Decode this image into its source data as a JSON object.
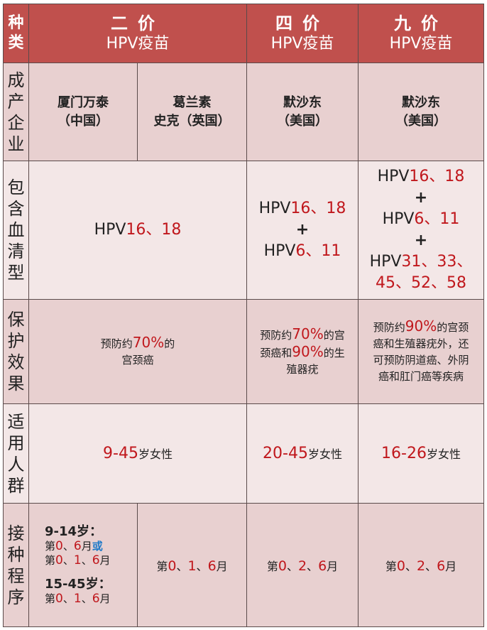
{
  "header": {
    "row_label": "种类",
    "bivalent": {
      "title": "二价",
      "subtitle": "HPV疫苗"
    },
    "quadrivalent": {
      "title": "四价",
      "subtitle": "HPV疫苗"
    },
    "nonavalent": {
      "title": "九价",
      "subtitle": "HPV疫苗"
    }
  },
  "rows": {
    "company": {
      "label": "成产企业",
      "cells": [
        [
          "厦门万泰",
          "（中国）"
        ],
        [
          "葛兰素",
          "史克（英国）"
        ],
        [
          "默沙东",
          "（美国）"
        ],
        [
          "默沙东",
          "（美国）"
        ]
      ]
    },
    "serotype": {
      "label": "包含血清型",
      "cells": [
        [
          [
            {
              "t": "HPV",
              "s": ""
            },
            {
              "t": "16、18",
              "s": "red"
            }
          ]
        ],
        [
          [
            {
              "t": "HPV",
              "s": ""
            },
            {
              "t": "16、18",
              "s": "red"
            }
          ],
          [
            {
              "t": "+",
              "s": "bold"
            }
          ],
          [
            {
              "t": "HPV",
              "s": ""
            },
            {
              "t": "6、11",
              "s": "red"
            }
          ]
        ],
        [
          [
            {
              "t": "HPV",
              "s": ""
            },
            {
              "t": "16、18",
              "s": "red"
            }
          ],
          [
            {
              "t": "+",
              "s": "bold"
            }
          ],
          [
            {
              "t": "HPV",
              "s": ""
            },
            {
              "t": "6、11",
              "s": "red"
            }
          ],
          [
            {
              "t": "+",
              "s": "bold"
            }
          ],
          [
            {
              "t": "HPV",
              "s": ""
            },
            {
              "t": "31、33、",
              "s": "red"
            }
          ],
          [
            {
              "t": "45、52、58",
              "s": "red"
            }
          ]
        ]
      ]
    },
    "effect": {
      "label": "保护效果",
      "cells": [
        [
          [
            {
              "t": "预防约",
              "s": ""
            },
            {
              "t": "70%",
              "s": "red"
            },
            {
              "t": "的",
              "s": ""
            }
          ],
          [
            {
              "t": "宫颈癌",
              "s": ""
            }
          ]
        ],
        [
          [
            {
              "t": "预防约",
              "s": ""
            },
            {
              "t": "70%",
              "s": "red"
            },
            {
              "t": "的宫",
              "s": ""
            }
          ],
          [
            {
              "t": "颈癌和",
              "s": ""
            },
            {
              "t": "90%",
              "s": "red"
            },
            {
              "t": "的生",
              "s": ""
            }
          ],
          [
            {
              "t": "殖器疣",
              "s": ""
            }
          ]
        ],
        [
          [
            {
              "t": "预防约",
              "s": ""
            },
            {
              "t": "90%",
              "s": "red"
            },
            {
              "t": "的宫颈",
              "s": ""
            }
          ],
          [
            {
              "t": "癌和生殖器疣外，还",
              "s": ""
            }
          ],
          [
            {
              "t": "可预防阴道癌、外阴",
              "s": ""
            }
          ],
          [
            {
              "t": "癌和肛门癌等疾病",
              "s": ""
            }
          ]
        ]
      ]
    },
    "age": {
      "label": "适用人群",
      "cells": [
        [
          [
            {
              "t": "9-45",
              "s": "red"
            },
            {
              "t": "岁女性",
              "s": ""
            }
          ]
        ],
        [
          [
            {
              "t": "20-45",
              "s": "red"
            },
            {
              "t": "岁女性",
              "s": ""
            }
          ]
        ],
        [
          [
            {
              "t": "16-26",
              "s": "red"
            },
            {
              "t": "岁女性",
              "s": ""
            }
          ]
        ]
      ]
    },
    "schedule": {
      "label": "接种程序",
      "cells": [
        [
          [
            {
              "t": "9-14岁：",
              "s": "bold"
            }
          ],
          [
            {
              "t": "第",
              "s": ""
            },
            {
              "t": "0",
              "s": "red"
            },
            {
              "t": "、",
              "s": ""
            },
            {
              "t": "6",
              "s": "red"
            },
            {
              "t": "月",
              "s": ""
            },
            {
              "t": "或",
              "s": "blue"
            }
          ],
          [
            {
              "t": "第",
              "s": ""
            },
            {
              "t": "0",
              "s": "red"
            },
            {
              "t": "、",
              "s": ""
            },
            {
              "t": "1",
              "s": "red"
            },
            {
              "t": "、",
              "s": ""
            },
            {
              "t": "6",
              "s": "red"
            },
            {
              "t": "月",
              "s": ""
            }
          ],
          [],
          [
            {
              "t": "15-45岁：",
              "s": "bold"
            }
          ],
          [
            {
              "t": "第",
              "s": ""
            },
            {
              "t": "0",
              "s": "red"
            },
            {
              "t": "、",
              "s": ""
            },
            {
              "t": "1",
              "s": "red"
            },
            {
              "t": "、",
              "s": ""
            },
            {
              "t": "6",
              "s": "red"
            },
            {
              "t": "月",
              "s": ""
            }
          ]
        ],
        [
          [
            {
              "t": "第",
              "s": ""
            },
            {
              "t": "0",
              "s": "red"
            },
            {
              "t": "、",
              "s": ""
            },
            {
              "t": "1",
              "s": "red"
            },
            {
              "t": "、",
              "s": ""
            },
            {
              "t": "6",
              "s": "red"
            },
            {
              "t": "月",
              "s": ""
            }
          ]
        ],
        [
          [
            {
              "t": "第",
              "s": ""
            },
            {
              "t": "0",
              "s": "red"
            },
            {
              "t": "、",
              "s": ""
            },
            {
              "t": "2",
              "s": "red"
            },
            {
              "t": "、",
              "s": ""
            },
            {
              "t": "6",
              "s": "red"
            },
            {
              "t": "月",
              "s": ""
            }
          ]
        ],
        [
          [
            {
              "t": "第",
              "s": ""
            },
            {
              "t": "0",
              "s": "red"
            },
            {
              "t": "、",
              "s": ""
            },
            {
              "t": "2",
              "s": "red"
            },
            {
              "t": "、",
              "s": ""
            },
            {
              "t": "6",
              "s": "red"
            },
            {
              "t": "月",
              "s": ""
            }
          ]
        ]
      ]
    }
  },
  "colors": {
    "header_bg": "#c0504d",
    "row_dark": "#e8d0d0",
    "row_light": "#f3e7e7",
    "highlight_red": "#c0171c",
    "highlight_blue": "#1f7ac8"
  }
}
